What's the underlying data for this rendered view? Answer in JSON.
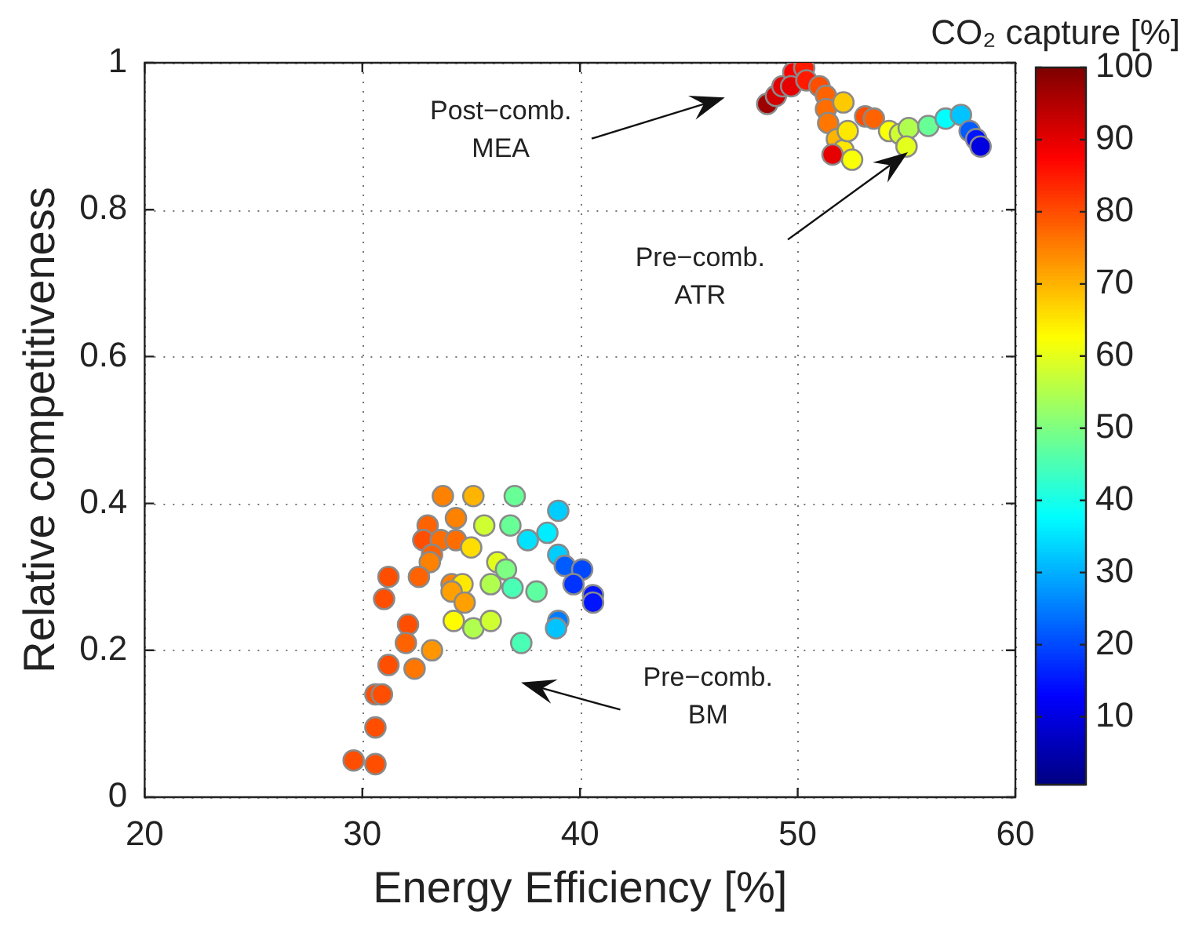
{
  "chart_data": {
    "type": "scatter",
    "xlabel": "Energy Efficiency [%]",
    "ylabel": "Relative competitiveness",
    "clabel": "CO₂ capture [%]",
    "xlim": [
      20,
      60
    ],
    "xticks": [
      20,
      30,
      40,
      50,
      60
    ],
    "ylim": [
      0,
      1
    ],
    "yticks": [
      0,
      0.2,
      0.4,
      0.6,
      0.8,
      1
    ],
    "clim": [
      0.6,
      100
    ],
    "cticks": [
      10,
      20,
      30,
      40,
      50,
      60,
      70,
      80,
      90,
      100
    ],
    "grid": true,
    "legend": false,
    "marker": "circle",
    "x": [
      33.7,
      35.1,
      37.0,
      39.0,
      33.0,
      34.3,
      35.6,
      36.8,
      38.5,
      37.6,
      32.8,
      33.6,
      34.3,
      35.0,
      33.2,
      39.0,
      36.2,
      36.6,
      33.1,
      39.3,
      40.1,
      31.2,
      32.6,
      34.1,
      34.6,
      35.9,
      36.9,
      38.0,
      39.7,
      40.6,
      40.6,
      34.1,
      34.7,
      31.0,
      34.2,
      35.1,
      35.9,
      39.0,
      38.9,
      32.1,
      32.0,
      33.2,
      37.3,
      31.2,
      32.4,
      30.6,
      30.9,
      30.6,
      29.6,
      30.6,
      48.6,
      49.0,
      49.3,
      49.8,
      50.3,
      49.7,
      50.4,
      51.0,
      51.3,
      51.3,
      51.4,
      52.1,
      51.8,
      52.1,
      52.5,
      51.6,
      52.3,
      53.1,
      53.5,
      54.2,
      54.7,
      55.1,
      56.0,
      56.8,
      57.5,
      57.9,
      58.2,
      58.4,
      55.0
    ],
    "values": [
      0.41,
      0.41,
      0.41,
      0.39,
      0.37,
      0.38,
      0.37,
      0.37,
      0.36,
      0.35,
      0.35,
      0.35,
      0.35,
      0.34,
      0.33,
      0.33,
      0.32,
      0.31,
      0.32,
      0.315,
      0.31,
      0.3,
      0.3,
      0.29,
      0.29,
      0.29,
      0.285,
      0.28,
      0.29,
      0.275,
      0.265,
      0.28,
      0.265,
      0.27,
      0.24,
      0.23,
      0.24,
      0.24,
      0.23,
      0.235,
      0.21,
      0.2,
      0.21,
      0.18,
      0.175,
      0.14,
      0.14,
      0.095,
      0.05,
      0.045,
      0.944,
      0.955,
      0.968,
      0.987,
      0.993,
      0.968,
      0.976,
      0.968,
      0.955,
      0.937,
      0.918,
      0.946,
      0.896,
      0.881,
      0.868,
      0.875,
      0.907,
      0.927,
      0.924,
      0.907,
      0.903,
      0.911,
      0.914,
      0.924,
      0.929,
      0.907,
      0.896,
      0.886,
      0.886
    ],
    "cvalues": [
      75,
      70,
      48,
      33,
      78,
      75,
      58,
      48,
      36,
      35,
      80,
      77,
      77,
      66,
      78,
      33,
      60,
      50,
      75,
      22,
      20,
      80,
      78,
      75,
      65,
      55,
      45,
      47,
      18,
      15,
      15,
      72,
      72,
      80,
      63,
      55,
      58,
      25,
      32,
      80,
      78,
      73,
      45,
      80,
      76,
      80,
      80,
      80,
      80,
      80,
      97,
      92,
      90,
      88,
      85,
      90,
      85,
      80,
      78,
      77,
      76,
      68,
      70,
      65,
      62,
      90,
      65,
      80,
      78,
      62,
      58,
      55,
      48,
      38,
      32,
      22,
      15,
      10,
      60
    ],
    "annotations": [
      "Post−comb.\nMEA",
      "Pre−comb.\nATR",
      "Pre−comb.\nBM"
    ]
  }
}
